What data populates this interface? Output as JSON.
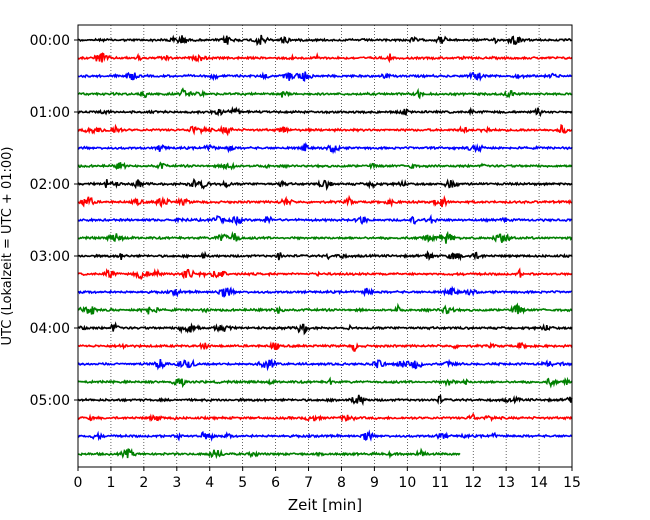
{
  "chart_data": {
    "type": "line",
    "title": "",
    "xlabel": "Zeit  [min]",
    "ylabel": "UTC (Lokalzeit = UTC + 01:00)",
    "xlim": [
      0,
      15
    ],
    "xticks": [
      "0",
      "1",
      "2",
      "3",
      "4",
      "5",
      "6",
      "7",
      "8",
      "9",
      "10",
      "11",
      "12",
      "13",
      "14",
      "15"
    ],
    "yticks": [
      "00:00",
      "01:00",
      "02:00",
      "03:00",
      "04:00",
      "05:00"
    ],
    "grid": "x-dotted",
    "trace_interval_min": 15,
    "trace_colors": [
      "#000000",
      "#ff0000",
      "#0000ff",
      "#008000"
    ],
    "traces": [
      {
        "start": "00:00",
        "end_min": 15,
        "color": "#000000"
      },
      {
        "start": "00:15",
        "end_min": 15,
        "color": "#ff0000"
      },
      {
        "start": "00:30",
        "end_min": 15,
        "color": "#0000ff"
      },
      {
        "start": "00:45",
        "end_min": 15,
        "color": "#008000"
      },
      {
        "start": "01:00",
        "end_min": 15,
        "color": "#000000"
      },
      {
        "start": "01:15",
        "end_min": 15,
        "color": "#ff0000"
      },
      {
        "start": "01:30",
        "end_min": 15,
        "color": "#0000ff"
      },
      {
        "start": "01:45",
        "end_min": 15,
        "color": "#008000"
      },
      {
        "start": "02:00",
        "end_min": 15,
        "color": "#000000"
      },
      {
        "start": "02:15",
        "end_min": 15,
        "color": "#ff0000"
      },
      {
        "start": "02:30",
        "end_min": 15,
        "color": "#0000ff"
      },
      {
        "start": "02:45",
        "end_min": 15,
        "color": "#008000"
      },
      {
        "start": "03:00",
        "end_min": 15,
        "color": "#000000"
      },
      {
        "start": "03:15",
        "end_min": 15,
        "color": "#ff0000"
      },
      {
        "start": "03:30",
        "end_min": 15,
        "color": "#0000ff"
      },
      {
        "start": "03:45",
        "end_min": 15,
        "color": "#008000"
      },
      {
        "start": "04:00",
        "end_min": 15,
        "color": "#000000"
      },
      {
        "start": "04:15",
        "end_min": 15,
        "color": "#ff0000"
      },
      {
        "start": "04:30",
        "end_min": 15,
        "color": "#0000ff"
      },
      {
        "start": "04:45",
        "end_min": 15,
        "color": "#008000"
      },
      {
        "start": "05:00",
        "end_min": 15,
        "color": "#000000"
      },
      {
        "start": "05:15",
        "end_min": 15,
        "color": "#ff0000"
      },
      {
        "start": "05:30",
        "end_min": 15,
        "color": "#0000ff"
      },
      {
        "start": "05:45",
        "end_min": 11.6,
        "color": "#008000"
      }
    ]
  }
}
